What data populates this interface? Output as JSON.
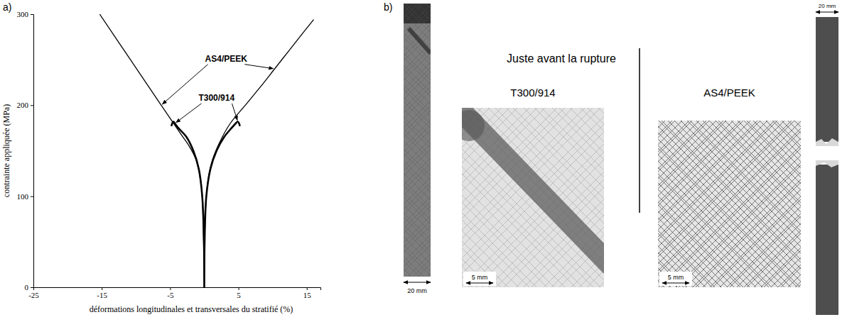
{
  "chart_data": {
    "type": "line",
    "xlabel": "déformations longitudinales et transversales du stratifié (%)",
    "ylabel": "contrainte appliquée (MPa)",
    "xlim": [
      -25,
      17
    ],
    "xticks": [
      -25,
      -15,
      -5,
      5,
      15
    ],
    "ylim": [
      0,
      300
    ],
    "yticks": [
      0,
      100,
      200,
      300
    ],
    "grid": false,
    "series": [
      {
        "name": "AS4/PEEK",
        "color": "#000000",
        "line_style": "solid",
        "x": [
          -15.3,
          -10.8,
          -6.3,
          -3.4,
          -2.2,
          -1.2,
          -0.6,
          -0.3,
          -0.1,
          0,
          null,
          0,
          0.05,
          0.3,
          0.6,
          1.2,
          2.3,
          3.8,
          6.0,
          8.2,
          10.3,
          12.4,
          14.5,
          16.0
        ],
        "values": [
          300,
          250,
          200,
          168,
          155,
          140,
          120,
          100,
          50,
          0,
          null,
          0,
          50,
          100,
          120,
          140,
          160,
          180,
          200,
          220,
          240,
          260,
          280,
          294
        ]
      },
      {
        "name": "T300/914",
        "color": "#000000",
        "line_style": "solid",
        "x": [
          -4.8,
          -4.7,
          -4.5,
          -4.3,
          -3.8,
          -2.6,
          -1.6,
          -0.8,
          -0.3,
          -0.05,
          0,
          null,
          0,
          0.05,
          0.3,
          0.9,
          1.8,
          2.9,
          4.0,
          4.6,
          4.9,
          5.1,
          5.2
        ],
        "values": [
          177,
          180,
          182,
          180,
          175,
          165,
          150,
          130,
          100,
          50,
          0,
          null,
          0,
          50,
          100,
          130,
          150,
          165,
          175,
          180,
          182,
          180,
          177
        ]
      }
    ]
  },
  "panel_a": {
    "label": "a)"
  },
  "panel_b": {
    "label": "b)",
    "heading": "Juste avant la rupture",
    "photos": [
      {
        "title": "T300/914",
        "scale_bar": "5 mm"
      },
      {
        "title": "AS4/PEEK",
        "scale_bar": "5 mm"
      }
    ],
    "specimens": [
      {
        "scale_bar": "20 mm"
      },
      {
        "scale_bar": "20 mm"
      }
    ]
  }
}
